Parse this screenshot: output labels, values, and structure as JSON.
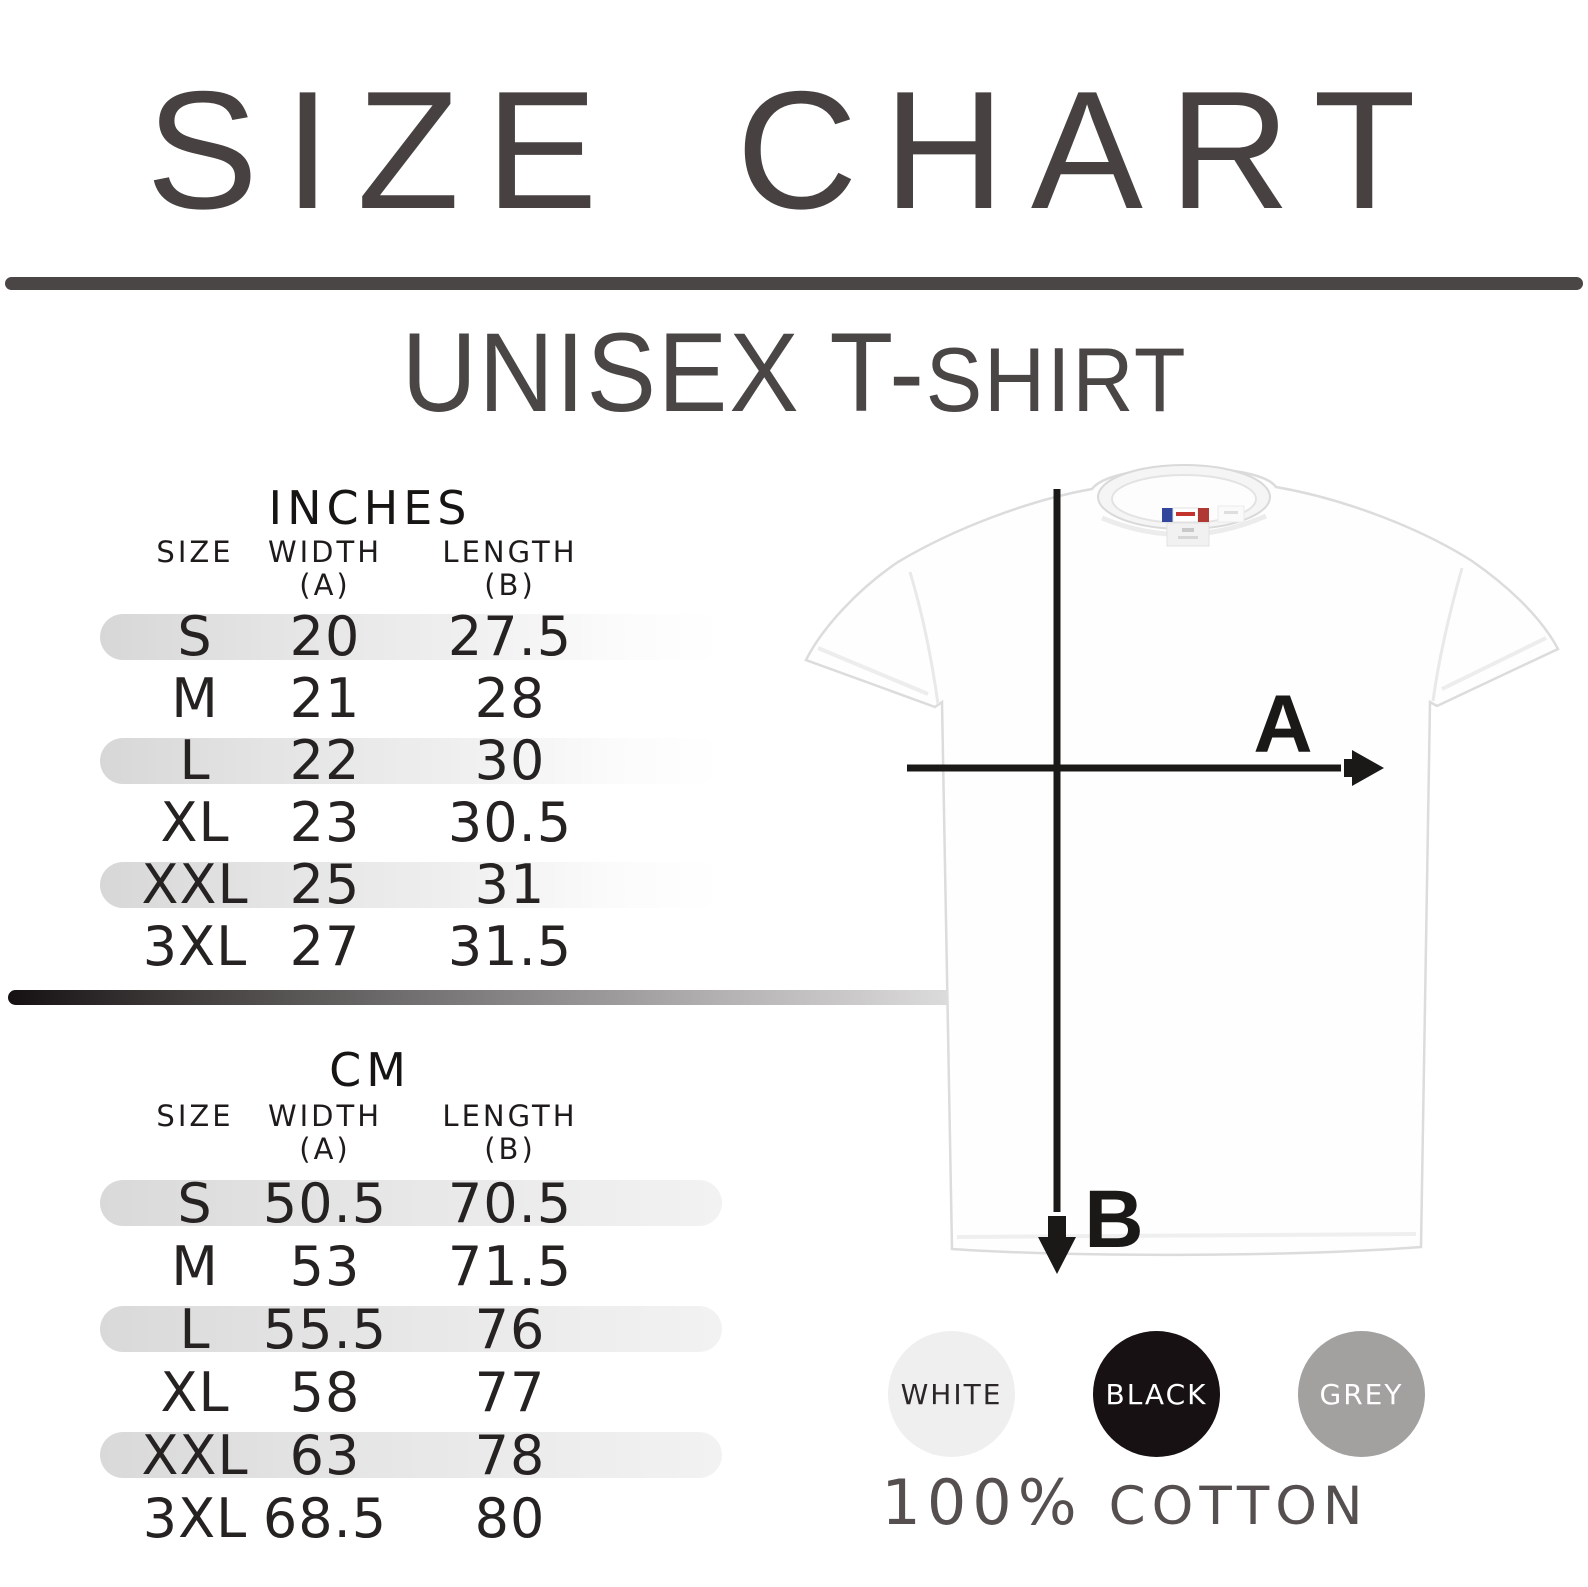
{
  "title": "SIZE CHART",
  "subtitle": {
    "main": "UNISEX T-",
    "small": "SHIRT"
  },
  "tables": [
    {
      "unit_label": "INCHES",
      "col_size": "SIZE",
      "col_width": "WIDTH",
      "col_width_sub": "(A)",
      "col_length": "LENGTH",
      "col_length_sub": "(B)",
      "rows": [
        {
          "size": "S",
          "width": "20",
          "length": "27.5",
          "highlight": true
        },
        {
          "size": "M",
          "width": "21",
          "length": "28",
          "highlight": false
        },
        {
          "size": "L",
          "width": "22",
          "length": "30",
          "highlight": true
        },
        {
          "size": "XL",
          "width": "23",
          "length": "30.5",
          "highlight": false
        },
        {
          "size": "XXL",
          "width": "25",
          "length": "31",
          "highlight": true
        },
        {
          "size": "3XL",
          "width": "27",
          "length": "31.5",
          "highlight": false
        }
      ]
    },
    {
      "unit_label": "CM",
      "col_size": "SIZE",
      "col_width": "WIDTH",
      "col_width_sub": "(A)",
      "col_length": "LENGTH",
      "col_length_sub": "(B)",
      "rows": [
        {
          "size": "S",
          "width": "50.5",
          "length": "70.5",
          "highlight": true
        },
        {
          "size": "M",
          "width": "53",
          "length": "71.5",
          "highlight": false
        },
        {
          "size": "L",
          "width": "55.5",
          "length": "76",
          "highlight": true
        },
        {
          "size": "XL",
          "width": "58",
          "length": "77",
          "highlight": false
        },
        {
          "size": "XXL",
          "width": "63",
          "length": "78",
          "highlight": true
        },
        {
          "size": "3XL",
          "width": "68.5",
          "length": "80",
          "highlight": false
        }
      ]
    }
  ],
  "diagram": {
    "width_label": "A",
    "length_label": "B"
  },
  "swatches": [
    {
      "label": "WHITE",
      "fill": "#f0eff0",
      "text_color": "#2b2727"
    },
    {
      "label": "BLACK",
      "fill": "#171114",
      "text_color": "#ffffff"
    },
    {
      "label": "GREY",
      "fill": "#a3a0a0",
      "text_color": "#ffffff"
    }
  ],
  "footer": {
    "percent": "100%",
    "material": "COTTON"
  },
  "accent_colors": {
    "heading": "#474241",
    "table_text": "#262222",
    "row_highlight": "#dcdcdc"
  },
  "chart_data": [
    {
      "type": "table",
      "title": "INCHES",
      "columns": [
        "SIZE",
        "WIDTH (A)",
        "LENGTH (B)"
      ],
      "rows": [
        [
          "S",
          20,
          27.5
        ],
        [
          "M",
          21,
          28
        ],
        [
          "L",
          22,
          30
        ],
        [
          "XL",
          23,
          30.5
        ],
        [
          "XXL",
          25,
          31
        ],
        [
          "3XL",
          27,
          31.5
        ]
      ]
    },
    {
      "type": "table",
      "title": "CM",
      "columns": [
        "SIZE",
        "WIDTH (A)",
        "LENGTH (B)"
      ],
      "rows": [
        [
          "S",
          50.5,
          70.5
        ],
        [
          "M",
          53,
          71.5
        ],
        [
          "L",
          55.5,
          76
        ],
        [
          "XL",
          58,
          77
        ],
        [
          "XXL",
          63,
          78
        ],
        [
          "3XL",
          68.5,
          80
        ]
      ]
    }
  ]
}
